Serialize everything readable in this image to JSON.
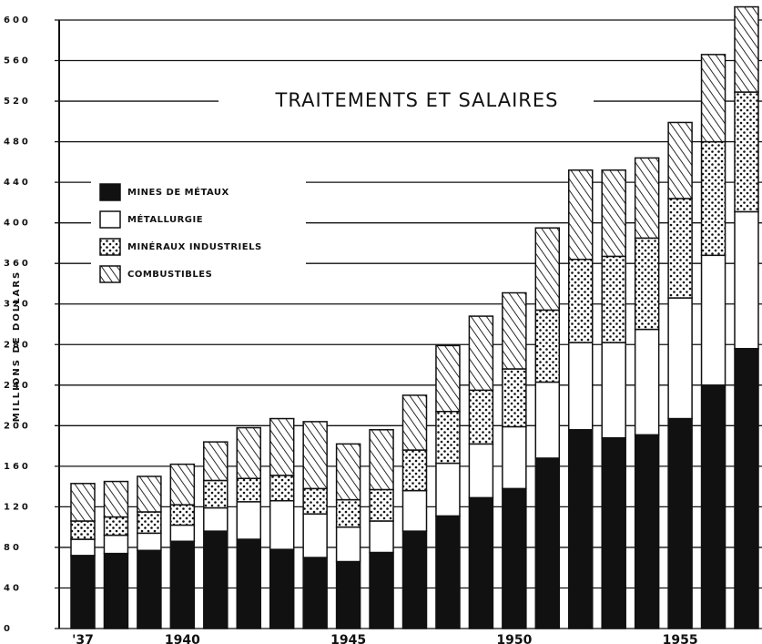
{
  "chart_data": {
    "type": "stacked_bar",
    "title": "TRAITEMENTS ET SALAIRES",
    "y_label": "MILLIONS DE DOLLARS",
    "categories": [
      "'37",
      null,
      null,
      "1940",
      null,
      null,
      null,
      null,
      "1945",
      null,
      null,
      null,
      null,
      "1950",
      null,
      null,
      null,
      null,
      "1955",
      null,
      null
    ],
    "series": [
      {
        "name": "MINES DE MÉTAUX",
        "color": "#111111",
        "pattern": "solid",
        "values": [
          72,
          74,
          77,
          86,
          96,
          88,
          78,
          70,
          66,
          75,
          96,
          111,
          129,
          138,
          168,
          196,
          188,
          191,
          207,
          240,
          276
        ]
      },
      {
        "name": "MÉTALLURGIE",
        "color": "#ffffff",
        "pattern": "solid",
        "values": [
          16,
          18,
          17,
          16,
          23,
          37,
          48,
          43,
          34,
          31,
          40,
          52,
          53,
          61,
          75,
          86,
          94,
          104,
          119,
          128,
          135
        ]
      },
      {
        "name": "MINÉRAUX INDUSTRIELS",
        "color": "#ffffff",
        "pattern": "dots",
        "values": [
          18,
          18,
          21,
          20,
          27,
          23,
          25,
          25,
          27,
          31,
          40,
          51,
          53,
          57,
          71,
          82,
          85,
          90,
          98,
          112,
          118
        ]
      },
      {
        "name": "COMBUSTIBLES",
        "color": "#ffffff",
        "pattern": "hatch",
        "values": [
          37,
          35,
          35,
          40,
          38,
          50,
          56,
          66,
          55,
          59,
          54,
          65,
          73,
          75,
          81,
          88,
          85,
          79,
          75,
          86,
          84
        ]
      }
    ],
    "ylim": [
      0,
      600
    ],
    "yticks": [
      0,
      40,
      80,
      120,
      160,
      200,
      240,
      280,
      320,
      360,
      400,
      440,
      480,
      520,
      560,
      600
    ],
    "grid": true
  }
}
